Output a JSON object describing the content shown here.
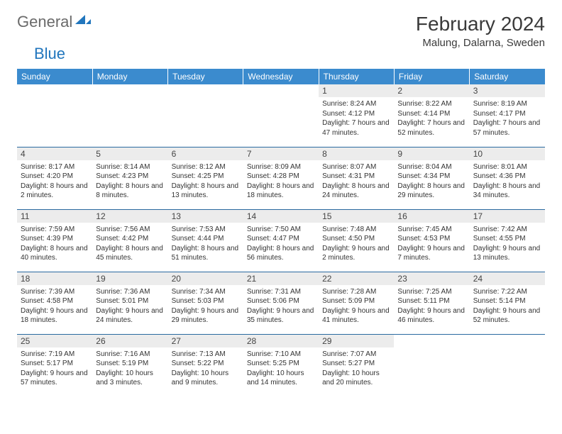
{
  "brand": {
    "general": "General",
    "blue": "Blue"
  },
  "title": "February 2024",
  "location": "Malung, Dalarna, Sweden",
  "colors": {
    "header_bg": "#3b8bce",
    "header_text": "#ffffff",
    "daynum_bg": "#ececec",
    "border": "#2a6aa0",
    "logo_gray": "#6a6a6a",
    "logo_blue": "#2176bd"
  },
  "weekdays": [
    "Sunday",
    "Monday",
    "Tuesday",
    "Wednesday",
    "Thursday",
    "Friday",
    "Saturday"
  ],
  "weeks": [
    [
      null,
      null,
      null,
      null,
      {
        "n": "1",
        "sr": "Sunrise: 8:24 AM",
        "ss": "Sunset: 4:12 PM",
        "dl": "Daylight: 7 hours and 47 minutes."
      },
      {
        "n": "2",
        "sr": "Sunrise: 8:22 AM",
        "ss": "Sunset: 4:14 PM",
        "dl": "Daylight: 7 hours and 52 minutes."
      },
      {
        "n": "3",
        "sr": "Sunrise: 8:19 AM",
        "ss": "Sunset: 4:17 PM",
        "dl": "Daylight: 7 hours and 57 minutes."
      }
    ],
    [
      {
        "n": "4",
        "sr": "Sunrise: 8:17 AM",
        "ss": "Sunset: 4:20 PM",
        "dl": "Daylight: 8 hours and 2 minutes."
      },
      {
        "n": "5",
        "sr": "Sunrise: 8:14 AM",
        "ss": "Sunset: 4:23 PM",
        "dl": "Daylight: 8 hours and 8 minutes."
      },
      {
        "n": "6",
        "sr": "Sunrise: 8:12 AM",
        "ss": "Sunset: 4:25 PM",
        "dl": "Daylight: 8 hours and 13 minutes."
      },
      {
        "n": "7",
        "sr": "Sunrise: 8:09 AM",
        "ss": "Sunset: 4:28 PM",
        "dl": "Daylight: 8 hours and 18 minutes."
      },
      {
        "n": "8",
        "sr": "Sunrise: 8:07 AM",
        "ss": "Sunset: 4:31 PM",
        "dl": "Daylight: 8 hours and 24 minutes."
      },
      {
        "n": "9",
        "sr": "Sunrise: 8:04 AM",
        "ss": "Sunset: 4:34 PM",
        "dl": "Daylight: 8 hours and 29 minutes."
      },
      {
        "n": "10",
        "sr": "Sunrise: 8:01 AM",
        "ss": "Sunset: 4:36 PM",
        "dl": "Daylight: 8 hours and 34 minutes."
      }
    ],
    [
      {
        "n": "11",
        "sr": "Sunrise: 7:59 AM",
        "ss": "Sunset: 4:39 PM",
        "dl": "Daylight: 8 hours and 40 minutes."
      },
      {
        "n": "12",
        "sr": "Sunrise: 7:56 AM",
        "ss": "Sunset: 4:42 PM",
        "dl": "Daylight: 8 hours and 45 minutes."
      },
      {
        "n": "13",
        "sr": "Sunrise: 7:53 AM",
        "ss": "Sunset: 4:44 PM",
        "dl": "Daylight: 8 hours and 51 minutes."
      },
      {
        "n": "14",
        "sr": "Sunrise: 7:50 AM",
        "ss": "Sunset: 4:47 PM",
        "dl": "Daylight: 8 hours and 56 minutes."
      },
      {
        "n": "15",
        "sr": "Sunrise: 7:48 AM",
        "ss": "Sunset: 4:50 PM",
        "dl": "Daylight: 9 hours and 2 minutes."
      },
      {
        "n": "16",
        "sr": "Sunrise: 7:45 AM",
        "ss": "Sunset: 4:53 PM",
        "dl": "Daylight: 9 hours and 7 minutes."
      },
      {
        "n": "17",
        "sr": "Sunrise: 7:42 AM",
        "ss": "Sunset: 4:55 PM",
        "dl": "Daylight: 9 hours and 13 minutes."
      }
    ],
    [
      {
        "n": "18",
        "sr": "Sunrise: 7:39 AM",
        "ss": "Sunset: 4:58 PM",
        "dl": "Daylight: 9 hours and 18 minutes."
      },
      {
        "n": "19",
        "sr": "Sunrise: 7:36 AM",
        "ss": "Sunset: 5:01 PM",
        "dl": "Daylight: 9 hours and 24 minutes."
      },
      {
        "n": "20",
        "sr": "Sunrise: 7:34 AM",
        "ss": "Sunset: 5:03 PM",
        "dl": "Daylight: 9 hours and 29 minutes."
      },
      {
        "n": "21",
        "sr": "Sunrise: 7:31 AM",
        "ss": "Sunset: 5:06 PM",
        "dl": "Daylight: 9 hours and 35 minutes."
      },
      {
        "n": "22",
        "sr": "Sunrise: 7:28 AM",
        "ss": "Sunset: 5:09 PM",
        "dl": "Daylight: 9 hours and 41 minutes."
      },
      {
        "n": "23",
        "sr": "Sunrise: 7:25 AM",
        "ss": "Sunset: 5:11 PM",
        "dl": "Daylight: 9 hours and 46 minutes."
      },
      {
        "n": "24",
        "sr": "Sunrise: 7:22 AM",
        "ss": "Sunset: 5:14 PM",
        "dl": "Daylight: 9 hours and 52 minutes."
      }
    ],
    [
      {
        "n": "25",
        "sr": "Sunrise: 7:19 AM",
        "ss": "Sunset: 5:17 PM",
        "dl": "Daylight: 9 hours and 57 minutes."
      },
      {
        "n": "26",
        "sr": "Sunrise: 7:16 AM",
        "ss": "Sunset: 5:19 PM",
        "dl": "Daylight: 10 hours and 3 minutes."
      },
      {
        "n": "27",
        "sr": "Sunrise: 7:13 AM",
        "ss": "Sunset: 5:22 PM",
        "dl": "Daylight: 10 hours and 9 minutes."
      },
      {
        "n": "28",
        "sr": "Sunrise: 7:10 AM",
        "ss": "Sunset: 5:25 PM",
        "dl": "Daylight: 10 hours and 14 minutes."
      },
      {
        "n": "29",
        "sr": "Sunrise: 7:07 AM",
        "ss": "Sunset: 5:27 PM",
        "dl": "Daylight: 10 hours and 20 minutes."
      },
      null,
      null
    ]
  ]
}
